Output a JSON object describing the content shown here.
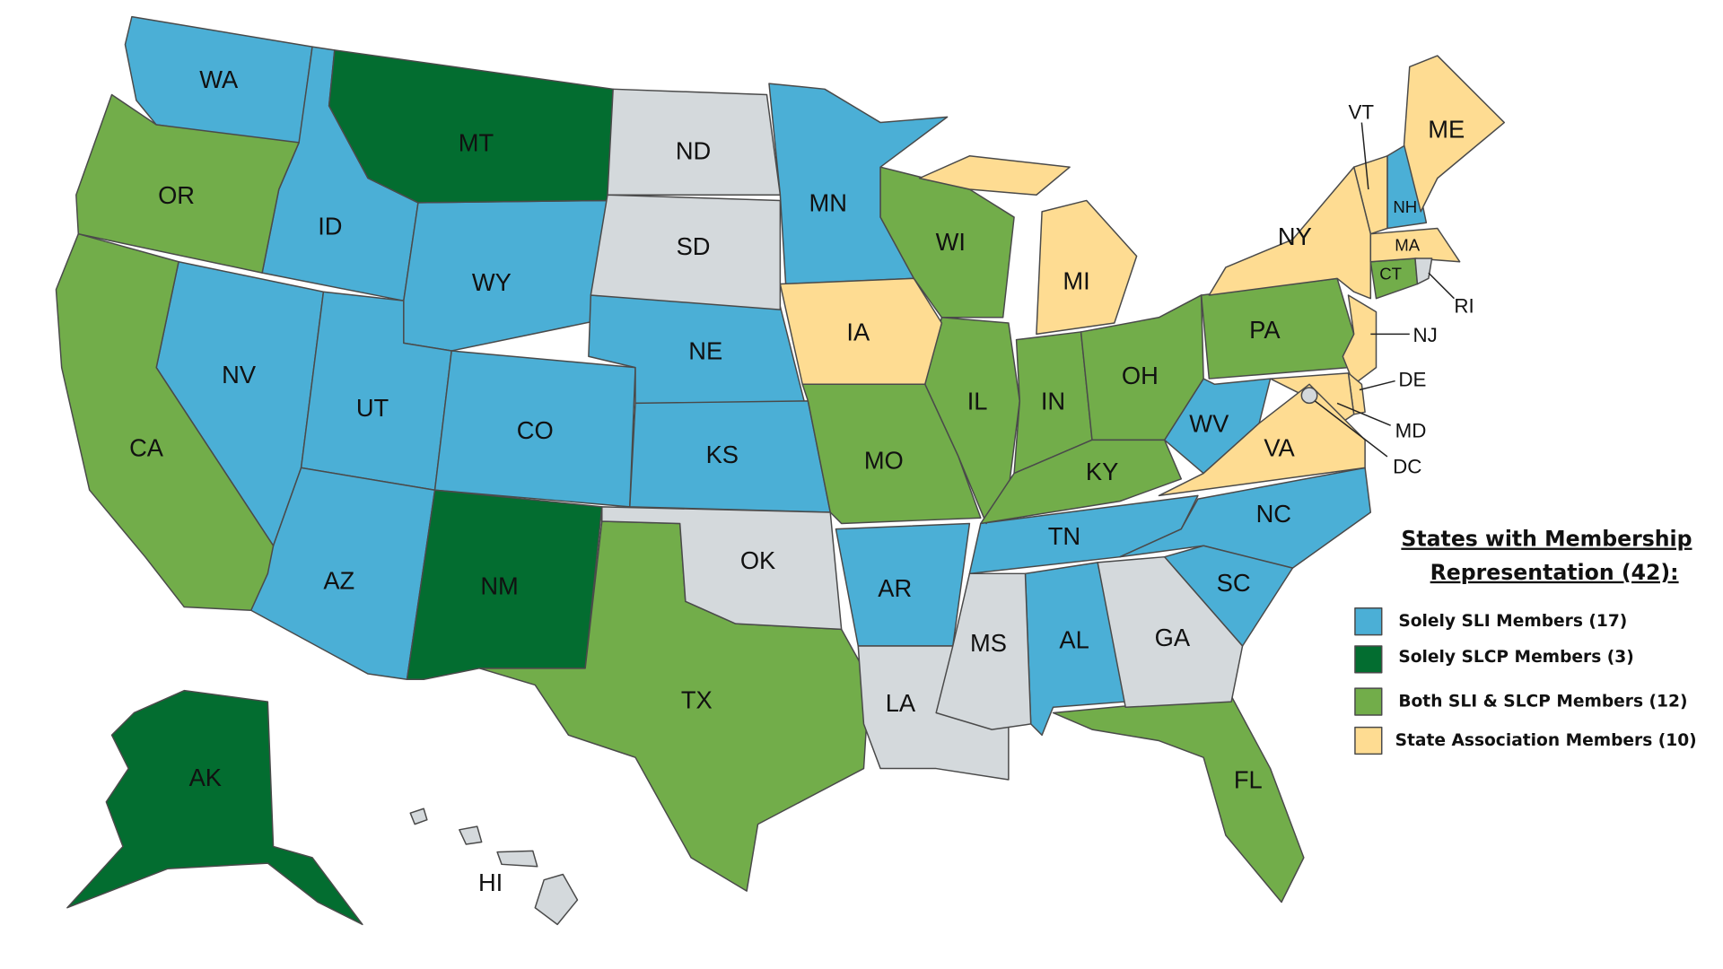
{
  "legend": {
    "title": [
      "States with Membership",
      "Representation (42):"
    ],
    "items": [
      {
        "label": "Solely SLI Members (17)",
        "color": "#4bafd6",
        "states": [
          "WA",
          "ID",
          "WY",
          "NV",
          "UT",
          "CO",
          "AZ",
          "NE",
          "KS",
          "MN",
          "AR",
          "TN",
          "AL",
          "NC",
          "SC",
          "WV",
          "NH"
        ]
      },
      {
        "label": "Solely SLCP Members (3)",
        "color": "#036d30",
        "states": [
          "MT",
          "NM",
          "AK"
        ]
      },
      {
        "label": "Both SLI & SLCP Members (12)",
        "color": "#72ad4a",
        "states": [
          "OR",
          "CA",
          "TX",
          "WI",
          "IL",
          "IN",
          "OH",
          "KY",
          "MO",
          "PA",
          "CT",
          "FL"
        ]
      },
      {
        "label": "State Association Members (10)",
        "color": "#fedc92",
        "states": [
          "ME",
          "VT",
          "NY",
          "MA",
          "MI",
          "IA",
          "NJ",
          "DE",
          "MD",
          "VA"
        ]
      }
    ]
  },
  "unrepresented": {
    "color": "#d4d9dc",
    "states": [
      "ND",
      "SD",
      "OK",
      "LA",
      "MS",
      "GA",
      "HI",
      "RI",
      "DC"
    ]
  }
}
